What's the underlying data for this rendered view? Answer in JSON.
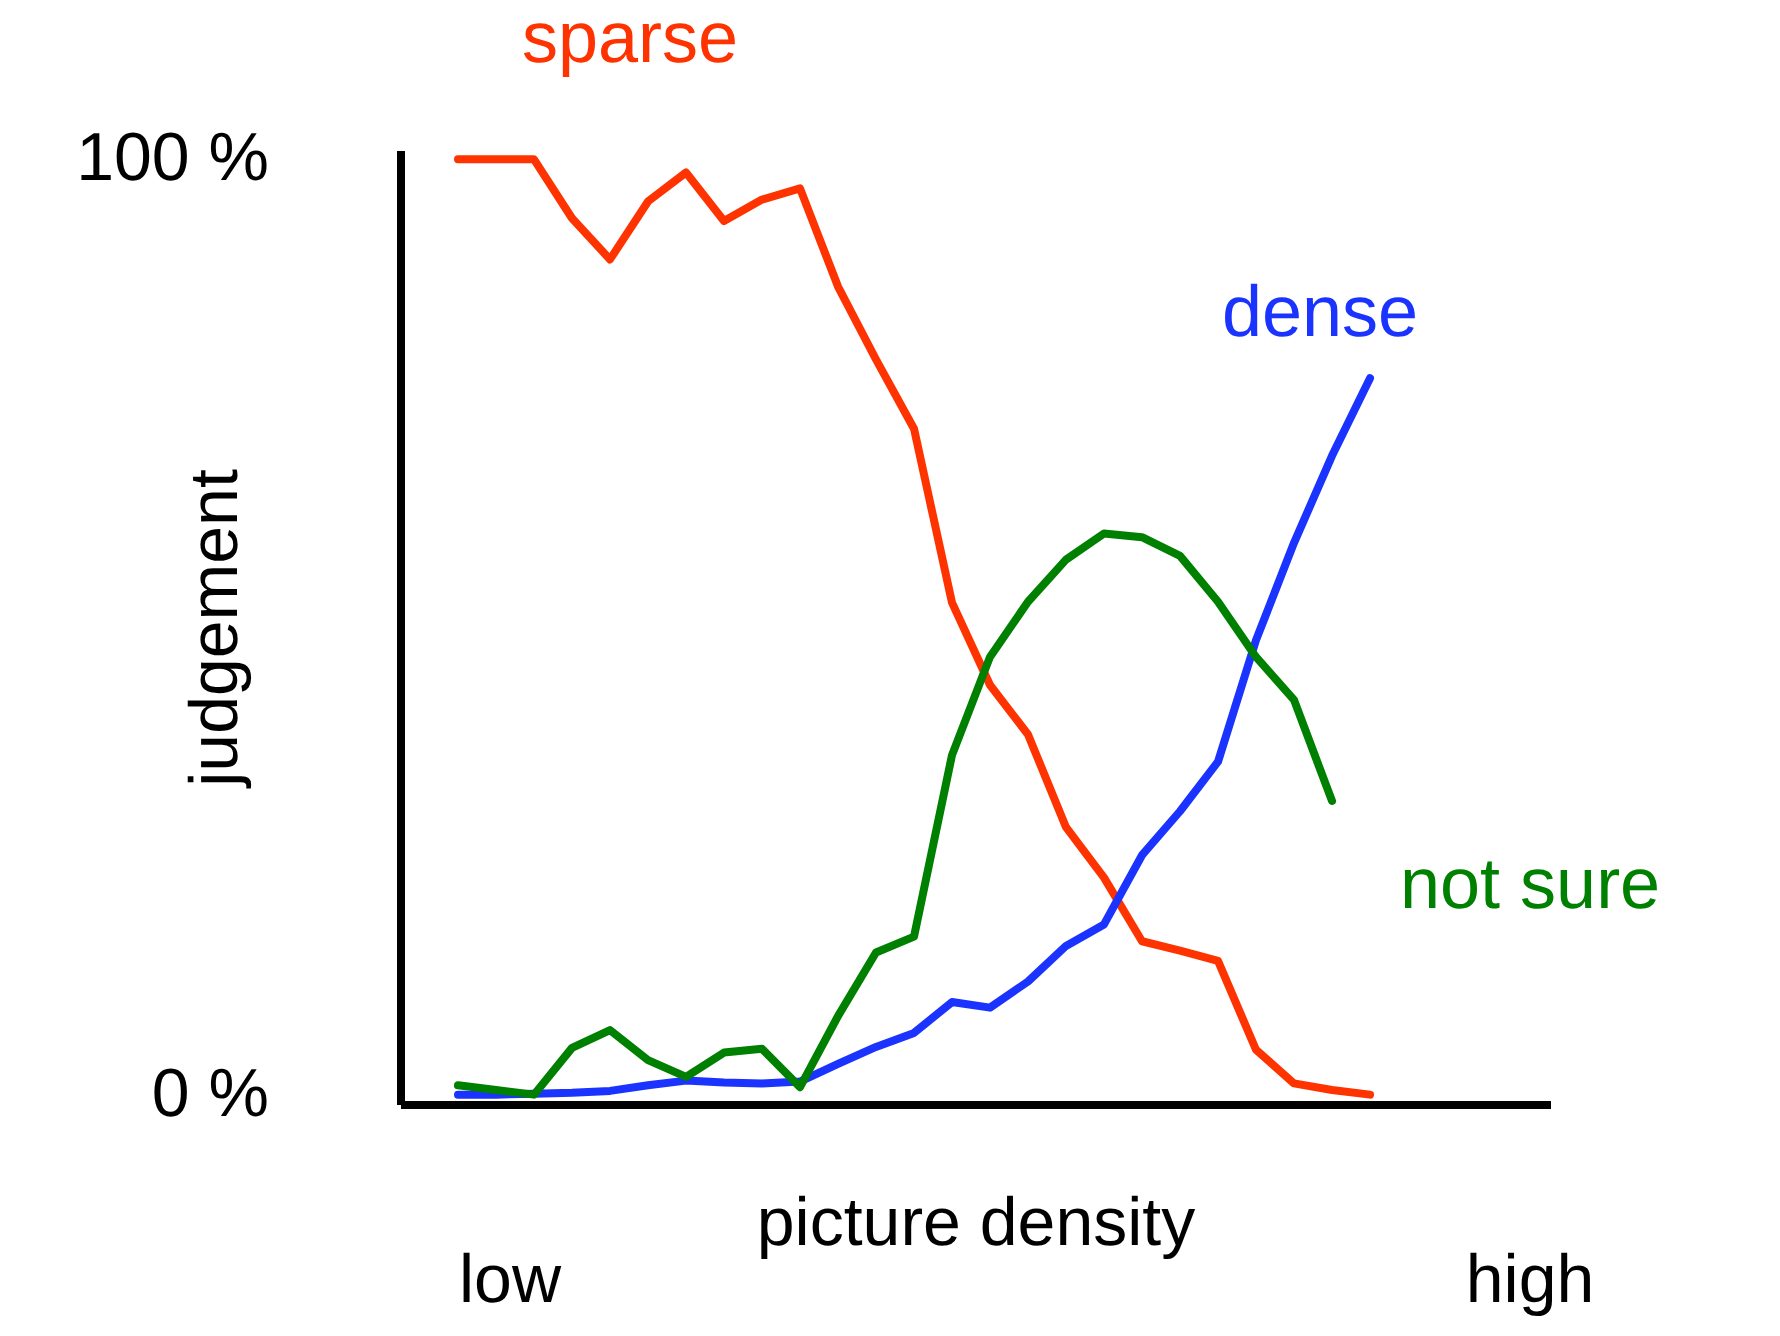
{
  "chart_data": {
    "type": "line",
    "xlabel": "picture density",
    "ylabel": "judgement",
    "annotations": [
      "low",
      "high"
    ],
    "categories": [
      null,
      null,
      null,
      null,
      null,
      null,
      null,
      null,
      null,
      null,
      null,
      null,
      null,
      null,
      null,
      null,
      null,
      null,
      null,
      null,
      null,
      null,
      null,
      null,
      null
    ],
    "ylim": [
      -1,
      101
    ],
    "yticks": [
      {
        "value": 0,
        "label": "0 %"
      },
      {
        "value": 100,
        "label": "100 %"
      }
    ],
    "grid": false,
    "legend": false,
    "marker": "none",
    "line_style": "solid",
    "series": [
      {
        "name": "sparse",
        "color": "#ff3300",
        "values": [
          100,
          100,
          100,
          93.7,
          89.3,
          95.5,
          98.6,
          93.4,
          95.7,
          96.9,
          86.4,
          78.6,
          71.2,
          52.6,
          43.8,
          38.5,
          28.6,
          23.2,
          16.4,
          15.4,
          14.3,
          4.8,
          1.2,
          0.5,
          0
        ]
      },
      {
        "name": "dense",
        "color": "#1a33ff",
        "values": [
          0,
          0,
          0.1,
          0.2,
          0.4,
          1.0,
          1.5,
          1.3,
          1.2,
          1.4,
          3.3,
          5.1,
          6.6,
          9.9,
          9.3,
          12.1,
          15.9,
          18.2,
          25.6,
          30.3,
          35.6,
          48.6,
          59.0,
          68.3,
          76.6
        ]
      },
      {
        "name": "not sure",
        "color": "#008000",
        "values": [
          1.0,
          0.5,
          0,
          5.0,
          6.9,
          3.7,
          1.9,
          4.5,
          4.9,
          0.8,
          8.4,
          15.2,
          16.9,
          36.3,
          46.8,
          52.7,
          57.2,
          60.0,
          59.6,
          57.6,
          52.7,
          46.8,
          42.2,
          31.4,
          null
        ]
      }
    ]
  }
}
